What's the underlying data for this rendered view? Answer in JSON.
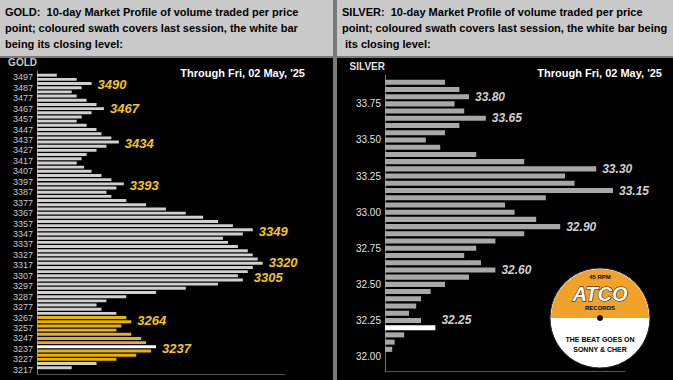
{
  "chart_data": [
    {
      "type": "bar",
      "title": "GOLD:  10-day Market Profile of volume traded per price point; coloured swath covers last session, the white bar being its closing level:",
      "subtitle": "Through Fri, 02 May, '25",
      "y_label": "GOLD",
      "orientation": "horizontal",
      "y": [
        3219,
        3223,
        3227,
        3231,
        3235,
        3239,
        3243,
        3247,
        3251,
        3255,
        3259,
        3263,
        3267,
        3271,
        3275,
        3279,
        3283,
        3287,
        3291,
        3295,
        3299,
        3303,
        3307,
        3311,
        3315,
        3319,
        3323,
        3327,
        3331,
        3335,
        3339,
        3343,
        3347,
        3351,
        3355,
        3359,
        3363,
        3367,
        3371,
        3375,
        3379,
        3383,
        3387,
        3391,
        3395,
        3399,
        3403,
        3407,
        3411,
        3415,
        3419,
        3423,
        3427,
        3431,
        3435,
        3439,
        3443,
        3447,
        3451,
        3455,
        3459,
        3463,
        3467,
        3471,
        3475,
        3479,
        3483,
        3487,
        3491,
        3495,
        3499
      ],
      "values": [
        14,
        24,
        32,
        40,
        46,
        48,
        44,
        42,
        38,
        32,
        34,
        38,
        36,
        32,
        26,
        24,
        28,
        36,
        48,
        60,
        73,
        83,
        81,
        85,
        87,
        91,
        89,
        87,
        85,
        81,
        77,
        75,
        83,
        87,
        79,
        73,
        67,
        60,
        52,
        44,
        36,
        30,
        28,
        32,
        35,
        30,
        26,
        22,
        19,
        16,
        18,
        20,
        24,
        28,
        33,
        30,
        26,
        24,
        20,
        16,
        18,
        22,
        27,
        24,
        20,
        16,
        14,
        18,
        22,
        16,
        8
      ],
      "colors": [
        "#d0d0d0",
        "#d0d0d0",
        "#e8b400",
        "#e8b400",
        "#e8b400",
        "#ffffff",
        "#e8b400",
        "#e8b400",
        "#e8b400",
        "#e8b400",
        "#e8b400",
        "#e8b400",
        "#e8b400",
        "#d0d0d0",
        "#d0d0d0",
        "#d0d0d0",
        "#d0d0d0",
        "#d0d0d0",
        "#d0d0d0",
        "#d0d0d0",
        "#d0d0d0",
        "#d0d0d0",
        "#d0d0d0",
        "#d0d0d0",
        "#d0d0d0",
        "#d0d0d0",
        "#d0d0d0",
        "#d0d0d0",
        "#d0d0d0",
        "#d0d0d0",
        "#d0d0d0",
        "#d0d0d0",
        "#d0d0d0",
        "#d0d0d0",
        "#d0d0d0",
        "#d0d0d0",
        "#d0d0d0",
        "#d0d0d0",
        "#d0d0d0",
        "#d0d0d0",
        "#d0d0d0",
        "#d0d0d0",
        "#d0d0d0",
        "#d0d0d0",
        "#d0d0d0",
        "#d0d0d0",
        "#d0d0d0",
        "#d0d0d0",
        "#d0d0d0",
        "#d0d0d0",
        "#d0d0d0",
        "#d0d0d0",
        "#d0d0d0",
        "#d0d0d0",
        "#d0d0d0",
        "#d0d0d0",
        "#d0d0d0",
        "#d0d0d0",
        "#d0d0d0",
        "#d0d0d0",
        "#d0d0d0",
        "#d0d0d0",
        "#d0d0d0",
        "#d0d0d0",
        "#d0d0d0",
        "#d0d0d0",
        "#d0d0d0",
        "#d0d0d0",
        "#d0d0d0",
        "#d0d0d0",
        "#d0d0d0"
      ],
      "xlim": [
        0,
        100
      ],
      "ylim": [
        3213,
        3503
      ],
      "yticks": [
        3217,
        3227,
        3237,
        3247,
        3257,
        3267,
        3277,
        3287,
        3297,
        3307,
        3317,
        3327,
        3337,
        3347,
        3357,
        3367,
        3377,
        3387,
        3397,
        3407,
        3417,
        3427,
        3437,
        3447,
        3457,
        3467,
        3477,
        3487,
        3497
      ],
      "tick_labels": "y",
      "grid": false,
      "annotations": [
        3490,
        3467,
        3434,
        3393,
        3349,
        3320,
        3305,
        3264,
        3237
      ]
    },
    {
      "type": "bar",
      "title": "SILVER:  10-day Market Profile of volume traded per price point; coloured swath covers last session, the white bar being its closing level:",
      "subtitle": "Through Fri, 02 May, '25",
      "y_label": "SILVER",
      "orientation": "horizontal",
      "y": [
        32.05,
        32.1,
        32.15,
        32.2,
        32.25,
        32.3,
        32.35,
        32.4,
        32.45,
        32.5,
        32.55,
        32.6,
        32.65,
        32.7,
        32.75,
        32.8,
        32.85,
        32.9,
        32.95,
        33,
        33.05,
        33.1,
        33.15,
        33.2,
        33.25,
        33.3,
        33.35,
        33.4,
        33.45,
        33.5,
        33.55,
        33.6,
        33.65,
        33.7,
        33.75,
        33.8,
        33.85,
        33.9
      ],
      "values": [
        3,
        4,
        8,
        21,
        15,
        10,
        13,
        15,
        19,
        25,
        35,
        46,
        40,
        33,
        38,
        46,
        58,
        73,
        63,
        54,
        50,
        67,
        95,
        79,
        75,
        88,
        58,
        38,
        23,
        17,
        25,
        31,
        42,
        33,
        29,
        35,
        31,
        25
      ],
      "colors": [
        "#a8a8a8",
        "#a8a8a8",
        "#a8a8a8",
        "#ffffff",
        "#a8a8a8",
        "#a8a8a8",
        "#a8a8a8",
        "#a8a8a8",
        "#a8a8a8",
        "#a8a8a8",
        "#a8a8a8",
        "#a8a8a8",
        "#a8a8a8",
        "#a8a8a8",
        "#a8a8a8",
        "#a8a8a8",
        "#a8a8a8",
        "#a8a8a8",
        "#a8a8a8",
        "#a8a8a8",
        "#a8a8a8",
        "#a8a8a8",
        "#a8a8a8",
        "#a8a8a8",
        "#a8a8a8",
        "#a8a8a8",
        "#a8a8a8",
        "#a8a8a8",
        "#a8a8a8",
        "#a8a8a8",
        "#a8a8a8",
        "#a8a8a8",
        "#a8a8a8",
        "#a8a8a8",
        "#a8a8a8",
        "#a8a8a8",
        "#a8a8a8",
        "#a8a8a8"
      ],
      "xlim": [
        0,
        100
      ],
      "ylim": [
        31.9,
        33.95
      ],
      "yticks": [
        {
          "value": 32,
          "label": "32.00"
        },
        {
          "value": 32.25,
          "label": "32.25"
        },
        {
          "value": 32.5,
          "label": "32.50"
        },
        {
          "value": 32.75,
          "label": "32.75"
        },
        {
          "value": 33,
          "label": "33.00"
        },
        {
          "value": 33.25,
          "label": "33.25"
        },
        {
          "value": 33.5,
          "label": "33.50"
        },
        {
          "value": 33.75,
          "label": "33.75"
        }
      ],
      "tick_labels": "y",
      "grid": false,
      "annotations": [
        {
          "value": 33.8,
          "label": "33.80"
        },
        {
          "value": 33.65,
          "label": "33.65"
        },
        {
          "value": 33.3,
          "label": "33.30"
        },
        {
          "value": 33.15,
          "label": "33.15"
        },
        {
          "value": 32.9,
          "label": "32.90"
        },
        {
          "value": 32.6,
          "label": "32.60"
        },
        {
          "value": 32.25,
          "label": "32.25"
        }
      ]
    }
  ],
  "record_label": {
    "speed": "45 RPM",
    "brand": "ATCO",
    "imprint": "RECORDS",
    "title": "THE BEAT GOES ON",
    "artist": "SONNY & CHER"
  }
}
